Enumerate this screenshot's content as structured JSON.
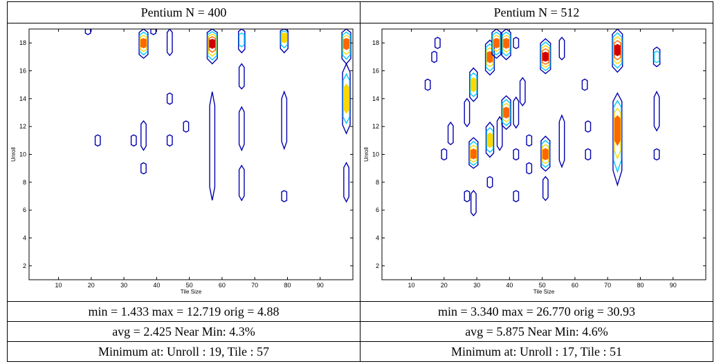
{
  "panels": [
    {
      "title": "Pentium N = 400",
      "stats_line": "min = 1.433 max = 12.719 orig = 4.88",
      "avg_line": "avg = 2.425 Near Min: 4.3%",
      "minimum_line": "Minimum at: Unroll : 19, Tile : 57"
    },
    {
      "title": "Pentium N = 512",
      "stats_line": "min = 3.340 max = 26.770 orig = 30.93",
      "avg_line": "avg = 5.875 Near Min: 4.6%",
      "minimum_line": "Minimum at: Unroll : 17, Tile : 51"
    }
  ],
  "chart_data": [
    {
      "type": "contour",
      "xlabel": "Tile Size",
      "ylabel": "Unroll",
      "xlim": [
        1,
        100
      ],
      "ylim": [
        1,
        19
      ],
      "xticks": [
        10,
        20,
        30,
        40,
        50,
        60,
        70,
        80,
        90
      ],
      "yticks": [
        2,
        4,
        6,
        8,
        10,
        12,
        14,
        16,
        18
      ],
      "levels_colors": [
        "#0000b0",
        "#00c8ff",
        "#ffd700",
        "#ff6600",
        "#d00000"
      ],
      "features": [
        {
          "x": 19,
          "y": 19,
          "y0": 18.6,
          "y1": 19,
          "level": 1
        },
        {
          "x": 22,
          "y": 11,
          "y0": 10.6,
          "y1": 11.4,
          "level": 1
        },
        {
          "x": 33,
          "y": 11,
          "y0": 10.6,
          "y1": 11.4,
          "level": 1
        },
        {
          "x": 36,
          "y": 18,
          "y0": 16.9,
          "y1": 19,
          "level": 4
        },
        {
          "x": 36,
          "y": 11.5,
          "y0": 10.3,
          "y1": 12.4,
          "level": 1
        },
        {
          "x": 36,
          "y": 9,
          "y0": 8.6,
          "y1": 9.4,
          "level": 1
        },
        {
          "x": 39,
          "y": 19,
          "y0": 18.6,
          "y1": 19,
          "level": 1
        },
        {
          "x": 44,
          "y": 18,
          "y0": 17.1,
          "y1": 19,
          "level": 1
        },
        {
          "x": 44,
          "y": 14,
          "y0": 13.6,
          "y1": 14.4,
          "level": 1
        },
        {
          "x": 44,
          "y": 11,
          "y0": 10.6,
          "y1": 11.4,
          "level": 1
        },
        {
          "x": 49,
          "y": 12,
          "y0": 11.6,
          "y1": 12.4,
          "level": 1
        },
        {
          "x": 57,
          "y": 18,
          "y0": 16.5,
          "y1": 19,
          "level": 5
        },
        {
          "x": 57,
          "y": 10.5,
          "y0": 6.7,
          "y1": 14.5,
          "level": 1
        },
        {
          "x": 66,
          "y": 18.3,
          "y0": 17.3,
          "y1": 19,
          "level": 2
        },
        {
          "x": 66,
          "y": 15.5,
          "y0": 14.7,
          "y1": 16.5,
          "level": 1
        },
        {
          "x": 66,
          "y": 12,
          "y0": 10.3,
          "y1": 13.4,
          "level": 1
        },
        {
          "x": 66,
          "y": 8,
          "y0": 6.7,
          "y1": 9.2,
          "level": 1
        },
        {
          "x": 79,
          "y": 18.5,
          "y0": 17.3,
          "y1": 19,
          "level": 3
        },
        {
          "x": 79,
          "y": 12.5,
          "y0": 10.4,
          "y1": 14.5,
          "level": 1
        },
        {
          "x": 79,
          "y": 7,
          "y0": 6.6,
          "y1": 7.4,
          "level": 1
        },
        {
          "x": 98,
          "y": 18,
          "y0": 16.5,
          "y1": 19,
          "level": 4
        },
        {
          "x": 98,
          "y": 14,
          "y0": 11.5,
          "y1": 16.5,
          "level": 3
        },
        {
          "x": 98,
          "y": 8,
          "y0": 6.6,
          "y1": 9.4,
          "level": 1
        }
      ]
    },
    {
      "type": "contour",
      "xlabel": "Tile Size",
      "ylabel": "Unroll",
      "xlim": [
        1,
        100
      ],
      "ylim": [
        1,
        19
      ],
      "xticks": [
        10,
        20,
        30,
        40,
        50,
        60,
        70,
        80,
        90
      ],
      "yticks": [
        2,
        4,
        6,
        8,
        10,
        12,
        14,
        16,
        18
      ],
      "levels_colors": [
        "#0000b0",
        "#00c8ff",
        "#ffd700",
        "#ff6600",
        "#d00000"
      ],
      "features": [
        {
          "x": 15,
          "y": 15,
          "y0": 14.6,
          "y1": 15.4,
          "level": 1
        },
        {
          "x": 17,
          "y": 17,
          "y0": 16.6,
          "y1": 17.4,
          "level": 1
        },
        {
          "x": 18,
          "y": 18,
          "y0": 17.6,
          "y1": 18.4,
          "level": 1
        },
        {
          "x": 20,
          "y": 10,
          "y0": 9.6,
          "y1": 10.4,
          "level": 1
        },
        {
          "x": 22,
          "y": 11.3,
          "y0": 10.7,
          "y1": 12.3,
          "level": 1
        },
        {
          "x": 27,
          "y": 13,
          "y0": 12,
          "y1": 14,
          "level": 1
        },
        {
          "x": 27,
          "y": 7,
          "y0": 6.6,
          "y1": 7.4,
          "level": 1
        },
        {
          "x": 29,
          "y": 15,
          "y0": 13.8,
          "y1": 16.2,
          "level": 3
        },
        {
          "x": 29,
          "y": 10,
          "y0": 9,
          "y1": 11.2,
          "level": 4
        },
        {
          "x": 29,
          "y": 6.5,
          "y0": 5.6,
          "y1": 7.4,
          "level": 1
        },
        {
          "x": 34,
          "y": 17,
          "y0": 15.7,
          "y1": 18.2,
          "level": 4
        },
        {
          "x": 34,
          "y": 11,
          "y0": 9.8,
          "y1": 12.3,
          "level": 3
        },
        {
          "x": 34,
          "y": 8,
          "y0": 7.6,
          "y1": 8.4,
          "level": 1
        },
        {
          "x": 36,
          "y": 18,
          "y0": 16.9,
          "y1": 19,
          "level": 4
        },
        {
          "x": 37,
          "y": 11.5,
          "y0": 10.3,
          "y1": 12.7,
          "level": 1
        },
        {
          "x": 39,
          "y": 18,
          "y0": 16.8,
          "y1": 19,
          "level": 4
        },
        {
          "x": 39,
          "y": 13,
          "y0": 11.8,
          "y1": 14.2,
          "level": 4
        },
        {
          "x": 42,
          "y": 18,
          "y0": 17.6,
          "y1": 18.4,
          "level": 1
        },
        {
          "x": 42,
          "y": 13,
          "y0": 11.9,
          "y1": 14.1,
          "level": 1
        },
        {
          "x": 42,
          "y": 10,
          "y0": 9.6,
          "y1": 10.4,
          "level": 1
        },
        {
          "x": 42,
          "y": 7,
          "y0": 6.6,
          "y1": 7.4,
          "level": 1
        },
        {
          "x": 44,
          "y": 14.5,
          "y0": 13.5,
          "y1": 15.5,
          "level": 1
        },
        {
          "x": 46,
          "y": 11,
          "y0": 10.6,
          "y1": 11.4,
          "level": 1
        },
        {
          "x": 46,
          "y": 9,
          "y0": 8.6,
          "y1": 9.4,
          "level": 1
        },
        {
          "x": 51,
          "y": 17,
          "y0": 15.8,
          "y1": 18.3,
          "level": 5
        },
        {
          "x": 51,
          "y": 10,
          "y0": 8.8,
          "y1": 11.3,
          "level": 4
        },
        {
          "x": 51,
          "y": 7.5,
          "y0": 6.7,
          "y1": 8.4,
          "level": 1
        },
        {
          "x": 56,
          "y": 11,
          "y0": 9.1,
          "y1": 12.8,
          "level": 1
        },
        {
          "x": 56,
          "y": 17.5,
          "y0": 16.8,
          "y1": 18.4,
          "level": 1
        },
        {
          "x": 63,
          "y": 15,
          "y0": 14.6,
          "y1": 15.4,
          "level": 1
        },
        {
          "x": 64,
          "y": 12,
          "y0": 11.6,
          "y1": 12.4,
          "level": 1
        },
        {
          "x": 64,
          "y": 10,
          "y0": 9.6,
          "y1": 10.4,
          "level": 1
        },
        {
          "x": 73,
          "y": 17.5,
          "y0": 15.9,
          "y1": 19,
          "level": 5
        },
        {
          "x": 73,
          "y": 12,
          "y0": 7.8,
          "y1": 14.4,
          "level": 4
        },
        {
          "x": 85,
          "y": 17,
          "y0": 16.3,
          "y1": 17.7,
          "level": 2
        },
        {
          "x": 85,
          "y": 13,
          "y0": 11.7,
          "y1": 14.5,
          "level": 1
        },
        {
          "x": 85,
          "y": 10,
          "y0": 9.6,
          "y1": 10.4,
          "level": 1
        }
      ]
    }
  ]
}
